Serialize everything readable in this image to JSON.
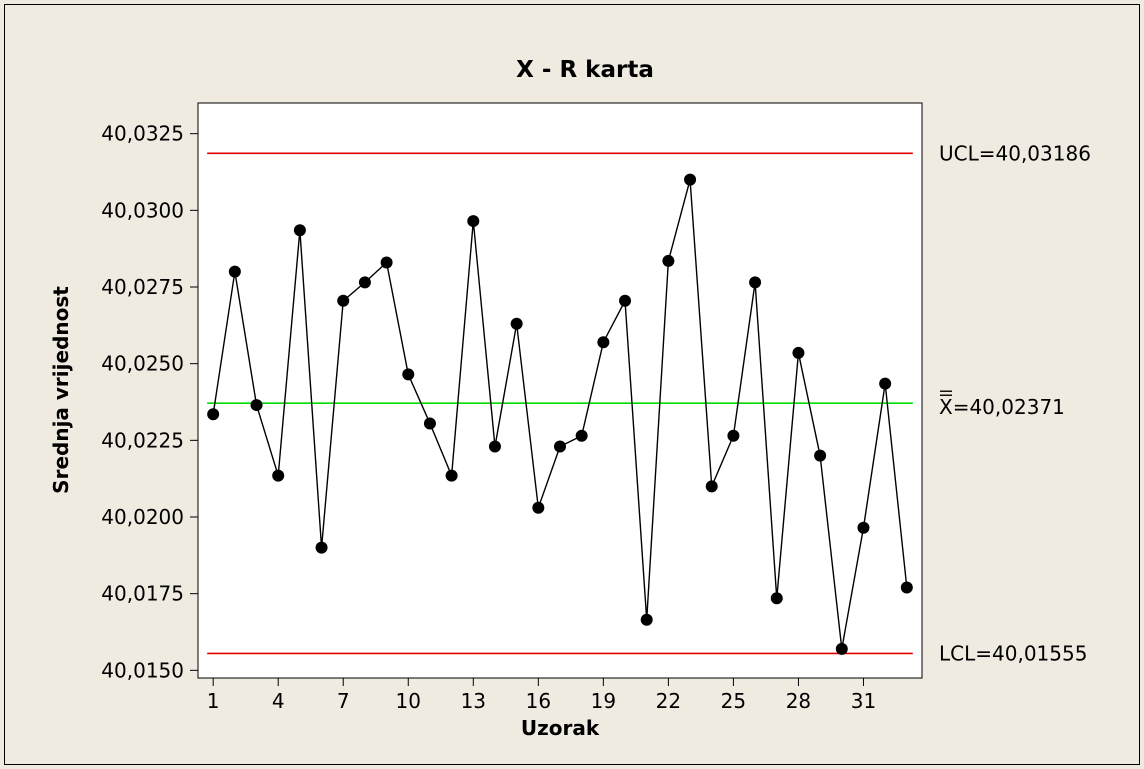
{
  "chart_data": {
    "type": "line",
    "title": "X - R karta",
    "xlabel": "Uzorak",
    "ylabel": "Srednja vrijednost",
    "xlim": [
      0.3,
      33.7
    ],
    "ylim": [
      40.01475,
      40.0335
    ],
    "x_ticks": [
      1,
      4,
      7,
      10,
      13,
      16,
      19,
      22,
      25,
      28,
      31
    ],
    "x_tick_labels": [
      "1",
      "4",
      "7",
      "10",
      "13",
      "16",
      "19",
      "22",
      "25",
      "28",
      "31"
    ],
    "y_ticks": [
      40.015,
      40.0175,
      40.02,
      40.0225,
      40.025,
      40.0275,
      40.03,
      40.0325
    ],
    "y_tick_labels": [
      "40,0150",
      "40,0175",
      "40,0200",
      "40,0225",
      "40,0250",
      "40,0275",
      "40,0300",
      "40,0325"
    ],
    "grid": false,
    "series": [
      {
        "color": "#000000",
        "x": [
          1,
          2,
          3,
          4,
          5,
          6,
          7,
          8,
          9,
          10,
          11,
          12,
          13,
          14,
          15,
          16,
          17,
          18,
          19,
          20,
          21,
          22,
          23,
          24,
          25,
          26,
          27,
          28,
          29,
          30,
          31,
          32,
          33
        ],
        "values": [
          40.02335,
          40.028,
          40.02365,
          40.02135,
          40.02935,
          40.019,
          40.02705,
          40.02765,
          40.0283,
          40.02465,
          40.02305,
          40.02135,
          40.02965,
          40.0223,
          40.0263,
          40.0203,
          40.0223,
          40.02265,
          40.0257,
          40.02705,
          40.01665,
          40.02835,
          40.031,
          40.021,
          40.02265,
          40.02765,
          40.01735,
          40.02535,
          40.022,
          40.0157,
          40.01965,
          40.02435,
          40.0177
        ]
      }
    ],
    "reference_lines": [
      {
        "name": "UCL",
        "value": 40.03186,
        "color": "#e00000",
        "label": "UCL=40,03186"
      },
      {
        "name": "center",
        "value": 40.02371,
        "color": "#00dd00",
        "label": "X=40,02371"
      },
      {
        "name": "LCL",
        "value": 40.01555,
        "color": "#e00000",
        "label": "LCL=40,01555"
      }
    ]
  }
}
